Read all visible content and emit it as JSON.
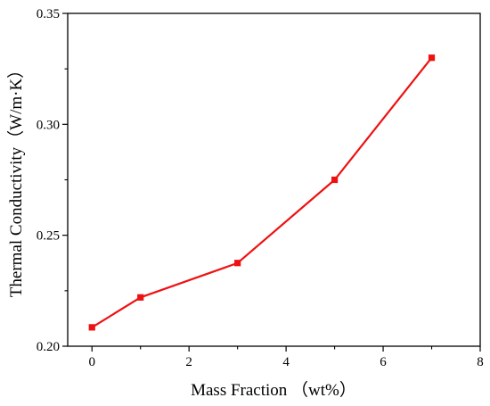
{
  "chart_data": {
    "type": "line",
    "title": "",
    "xlabel": "Mass Fraction （wt%）",
    "ylabel": "Thermal Conductivity（W/m·K）",
    "xlim": [
      -0.5,
      8
    ],
    "ylim": [
      0.2,
      0.35
    ],
    "x_ticks": [
      0,
      2,
      4,
      6,
      8
    ],
    "y_ticks": [
      0.2,
      0.25,
      0.3,
      0.35
    ],
    "x_tick_labels": [
      "0",
      "2",
      "4",
      "6",
      "8"
    ],
    "y_tick_labels": [
      "0.20",
      "0.25",
      "0.30",
      "0.35"
    ],
    "grid": false,
    "legend": "none",
    "series": [
      {
        "x": [
          0,
          1,
          3,
          5,
          7
        ],
        "y": [
          0.2085,
          0.222,
          0.2375,
          0.275,
          0.33
        ],
        "color": "#ee1111",
        "marker": "square"
      }
    ]
  }
}
